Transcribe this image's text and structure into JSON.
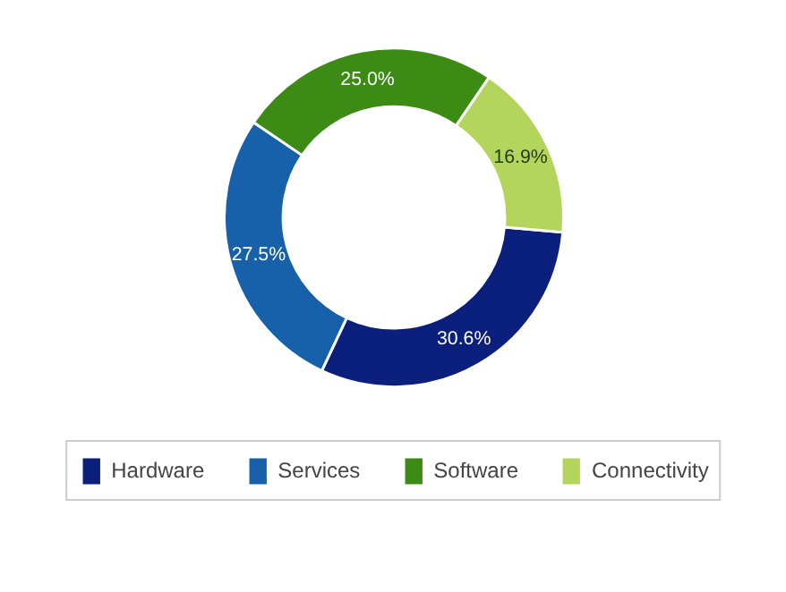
{
  "chart_data": {
    "type": "donut",
    "categories": [
      "Hardware",
      "Services",
      "Software",
      "Connectivity"
    ],
    "values": [
      30.6,
      27.5,
      25.0,
      16.9
    ],
    "colors": [
      "#0b1f7c",
      "#1661aa",
      "#3c8b14",
      "#b4d55c"
    ],
    "value_labels": [
      "30.6%",
      "27.5%",
      "25.0%",
      "16.9%"
    ],
    "legend": "bottom"
  }
}
